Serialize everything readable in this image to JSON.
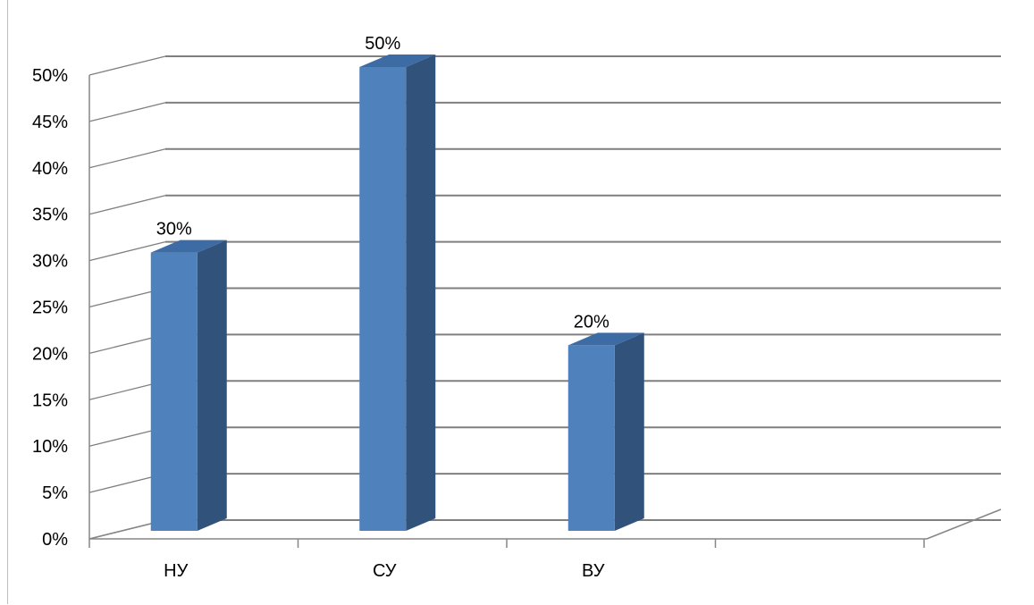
{
  "chart_data": {
    "type": "bar",
    "categories": [
      "НУ",
      "СУ",
      "ВУ",
      ""
    ],
    "values": [
      30,
      50,
      20,
      null
    ],
    "data_labels": [
      "30%",
      "50%",
      "20%",
      ""
    ],
    "ylim": [
      0,
      50
    ],
    "ytick_step": 5,
    "ytick_labels": [
      "0%",
      "5%",
      "10%",
      "15%",
      "20%",
      "25%",
      "30%",
      "35%",
      "40%",
      "45%",
      "50%"
    ],
    "title": "",
    "xlabel": "",
    "ylabel": "",
    "grid": true,
    "style": "3d-column",
    "colors": {
      "bar_front": "#4F81BD",
      "bar_side": "#31527A",
      "bar_top": "#3D6BA3",
      "grid": "#7f7f7f",
      "axis": "#868686"
    }
  }
}
